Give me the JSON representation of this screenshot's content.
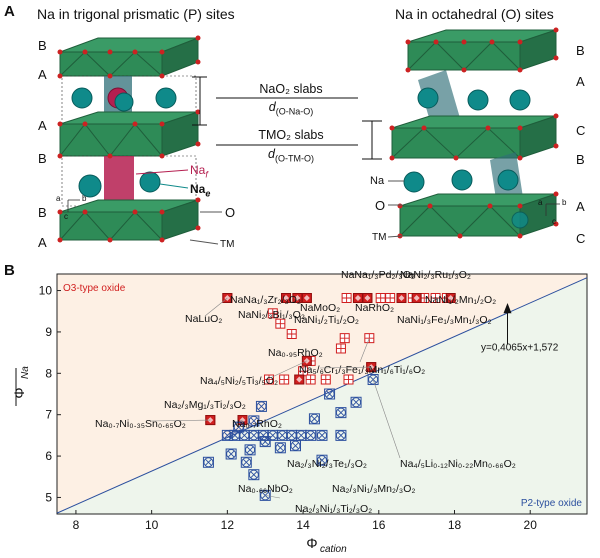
{
  "panel_a": {
    "letter": "A",
    "title_left": "Na in trigonal prismatic (P) sites",
    "title_right": "Na in octahedral (O) sites",
    "left_layers": [
      "B",
      "A",
      "A",
      "B",
      "B",
      "A"
    ],
    "right_layers": [
      "B",
      "A",
      "C",
      "B",
      "A",
      "C"
    ],
    "nao2_slabs": "NaO₂ slabs",
    "d_nao": "d",
    "d_nao_sub": "(O-Na-O)",
    "tmo2_slabs": "TMO₂ slabs",
    "d_tmo": "d",
    "d_tmo_sub": "(O-TM-O)",
    "label_naf": "Na",
    "label_naf_sub": "f",
    "label_nae": "Na",
    "label_nae_sub": "e",
    "label_o_left": "O",
    "label_tm_left": "TM",
    "label_na_right": "Na",
    "label_o_right": "O",
    "label_tm_right": "TM",
    "axes_a": "a",
    "axes_b": "b",
    "axes_c": "c",
    "colors": {
      "slab": "#2e8b57",
      "na": "#0f8a8a",
      "o": "#cc2222",
      "prism": "#b51f50",
      "octa": "#2f6f78"
    }
  },
  "panel_b": {
    "letter": "B",
    "chart_data": {
      "type": "scatter",
      "xlabel": "Φ",
      "xlabel_sub": "cation",
      "ylabel": "Φ",
      "ylabel_sub": "Na",
      "xlim": [
        7.5,
        21.5
      ],
      "ylim": [
        4.6,
        10.4
      ],
      "xticks": [
        8,
        10,
        12,
        14,
        16,
        18,
        20
      ],
      "yticks": [
        5,
        6,
        7,
        8,
        9,
        10
      ],
      "fit_line": {
        "slope": 0.4065,
        "intercept": 1.572,
        "label": "y=0,4065x+1,572"
      },
      "region_o3_label": "O3-type oxide",
      "region_p2_label": "P2-type oxide",
      "o3_points": [
        [
          12.0,
          9.82
        ],
        [
          13.55,
          9.82
        ],
        [
          13.85,
          9.82
        ],
        [
          14.1,
          9.82
        ],
        [
          15.15,
          9.82
        ],
        [
          15.45,
          9.82
        ],
        [
          15.7,
          9.82
        ],
        [
          16.05,
          9.82
        ],
        [
          16.3,
          9.82
        ],
        [
          16.6,
          9.82
        ],
        [
          16.9,
          9.82
        ],
        [
          17.2,
          9.82
        ],
        [
          17.5,
          9.82
        ],
        [
          17.8,
          9.82
        ],
        [
          13.2,
          9.45
        ],
        [
          13.4,
          9.2
        ],
        [
          13.7,
          8.95
        ],
        [
          15.1,
          8.85
        ],
        [
          15.75,
          8.85
        ],
        [
          15.0,
          8.6
        ],
        [
          14.2,
          8.3
        ],
        [
          14.0,
          8.05
        ],
        [
          15.8,
          8.15
        ],
        [
          13.1,
          7.85
        ],
        [
          13.5,
          7.85
        ],
        [
          13.9,
          7.85
        ],
        [
          14.2,
          7.85
        ],
        [
          14.6,
          7.85
        ],
        [
          15.2,
          7.85
        ],
        [
          12.4,
          6.87
        ],
        [
          11.55,
          6.87
        ]
      ],
      "o3_filled": [
        [
          12.0,
          9.82
        ],
        [
          13.55,
          9.82
        ],
        [
          13.85,
          9.82
        ],
        [
          14.1,
          9.82
        ],
        [
          15.45,
          9.82
        ],
        [
          15.7,
          9.82
        ],
        [
          16.6,
          9.82
        ],
        [
          17.0,
          9.82
        ],
        [
          17.9,
          9.82
        ],
        [
          14.1,
          8.3
        ],
        [
          13.9,
          7.85
        ],
        [
          15.8,
          8.15
        ],
        [
          12.4,
          6.87
        ],
        [
          11.55,
          6.87
        ]
      ],
      "p2_points": [
        [
          12.0,
          6.5
        ],
        [
          12.2,
          6.5
        ],
        [
          12.45,
          6.5
        ],
        [
          12.7,
          6.5
        ],
        [
          12.95,
          6.5
        ],
        [
          13.2,
          6.5
        ],
        [
          13.45,
          6.5
        ],
        [
          13.7,
          6.5
        ],
        [
          13.95,
          6.5
        ],
        [
          14.2,
          6.5
        ],
        [
          14.5,
          6.5
        ],
        [
          15.0,
          6.5
        ],
        [
          12.3,
          6.7
        ],
        [
          12.7,
          6.85
        ],
        [
          13.0,
          6.35
        ],
        [
          13.4,
          6.2
        ],
        [
          13.8,
          6.25
        ],
        [
          12.6,
          6.15
        ],
        [
          12.1,
          6.05
        ],
        [
          11.5,
          5.85
        ],
        [
          12.5,
          5.85
        ],
        [
          12.7,
          5.55
        ],
        [
          13.0,
          5.05
        ],
        [
          14.5,
          5.9
        ],
        [
          15.0,
          7.05
        ],
        [
          14.7,
          7.5
        ],
        [
          15.85,
          7.85
        ],
        [
          15.4,
          7.3
        ],
        [
          14.3,
          6.9
        ],
        [
          12.9,
          7.2
        ]
      ],
      "annotations": [
        {
          "text": "NaLuO₂"
        },
        {
          "text": "NaNa₁/₃Zr₂/₃O₂"
        },
        {
          "text": "NaNi₂/₃Bi₁/₃O₂"
        },
        {
          "text": "NaNa₁/₃Pd₂/₃O₂"
        },
        {
          "text": "NaNi₂/₃Ru₁/₃O₂"
        },
        {
          "text": "NaMoO₂"
        },
        {
          "text": "NaRhO₂"
        },
        {
          "text": "NaNi₁/₂Mn₁/₂O₂"
        },
        {
          "text": "NaNi₁/₂Ti₁/₂O₂"
        },
        {
          "text": "NaNi₁/₃Fe₁/₃Mn₁/₃O₂"
        },
        {
          "text": "Na₀.₉₅RhO₂"
        },
        {
          "text": "Na₅/₆Cr₁/₃Fe₁/₃Mn₁/₆Ti₁/₆O₂"
        },
        {
          "text": "Na₄/₅Ni₂/₅Ti₃/₅O₂"
        },
        {
          "text": "Na₂/₃Mg₁/₃Ti₂/₃O₂"
        },
        {
          "text": "Na₀.₇Ni₀.₃₅Sn₀.₆₅O₂"
        },
        {
          "text": "Na₀.₇RhO₂"
        },
        {
          "text": "Na₄/₅Li₀.₁₂Ni₀.₂₂Mn₀.₆₆O₂"
        },
        {
          "text": "Na₂/₃Ni₂/₃Te₁/₃O₂"
        },
        {
          "text": "Na₀.₆₆NbO₂"
        },
        {
          "text": "Na₂/₃Ni₁/₃Mn₂/₃O₂"
        },
        {
          "text": "Na₂/₃Ni₁/₃Ti₂/₃O₂"
        }
      ]
    }
  }
}
